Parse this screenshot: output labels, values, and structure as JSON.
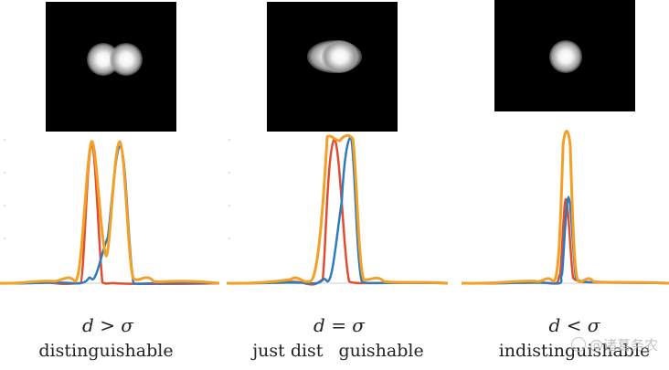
{
  "panels": [
    {
      "relation": "d > σ",
      "verdict": "distinguishable"
    },
    {
      "relation": "d = σ",
      "verdict_left": "just dist",
      "verdict_right": "guishable"
    },
    {
      "relation": "d < σ",
      "verdict": "indistinguishable"
    }
  ],
  "watermark": "@诸葛务农",
  "colors": {
    "single_source_a": "#e24d2f",
    "single_source_b": "#2f7bc0",
    "combined": "#f3a126",
    "background_spot": "#000000"
  }
}
